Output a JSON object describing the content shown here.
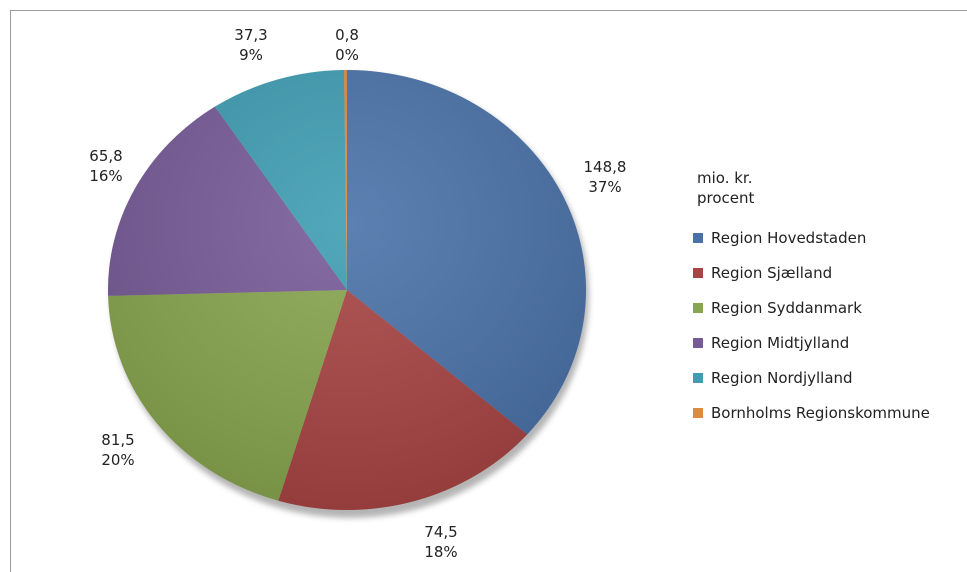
{
  "chart_data": {
    "type": "pie",
    "legend_title": [
      "mio. kr.",
      "procent"
    ],
    "legend_position": "right",
    "slices": [
      {
        "name": "Region Hovedstaden",
        "value": 148.8,
        "value_label": "148,8",
        "percent_label": "37%",
        "color": "#4A72A8"
      },
      {
        "name": "Region Sjælland",
        "value": 74.5,
        "value_label": "74,5",
        "percent_label": "18%",
        "color": "#A84544"
      },
      {
        "name": "Region Syddanmark",
        "value": 81.5,
        "value_label": "81,5",
        "percent_label": "20%",
        "color": "#88A54F"
      },
      {
        "name": "Region Midtjylland",
        "value": 65.8,
        "value_label": "65,8",
        "percent_label": "16%",
        "color": "#775B97"
      },
      {
        "name": "Region Nordjylland",
        "value": 37.3,
        "value_label": "37,3",
        "percent_label": "9%",
        "color": "#3F9DB2"
      },
      {
        "name": "Bornholms Regionskommune",
        "value": 0.8,
        "value_label": "0,8",
        "percent_label": "0%",
        "color": "#E08A3C"
      }
    ]
  }
}
